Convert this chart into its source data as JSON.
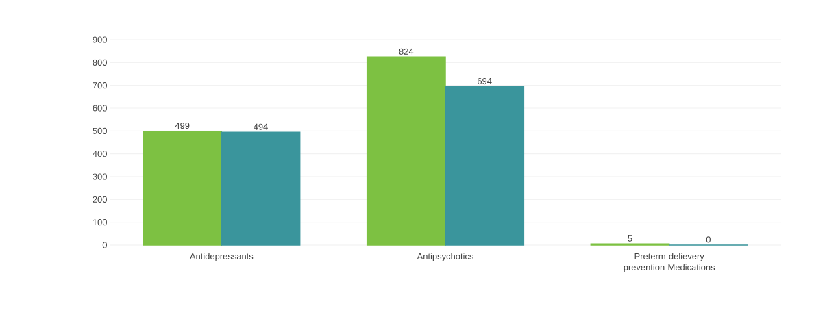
{
  "chart_data": {
    "type": "bar",
    "categories": [
      "Antidepressants",
      "Antipsychotics",
      "Preterm delievery prevention Medications"
    ],
    "series": [
      {
        "color": "#7dc142",
        "values": [
          499,
          824,
          5
        ]
      },
      {
        "color": "#3a959c",
        "values": [
          494,
          694,
          0
        ]
      }
    ],
    "ylim": [
      0,
      900
    ],
    "yticks": [
      0,
      100,
      200,
      300,
      400,
      500,
      600,
      700,
      800,
      900
    ],
    "grid": "y",
    "data_labels": true
  }
}
